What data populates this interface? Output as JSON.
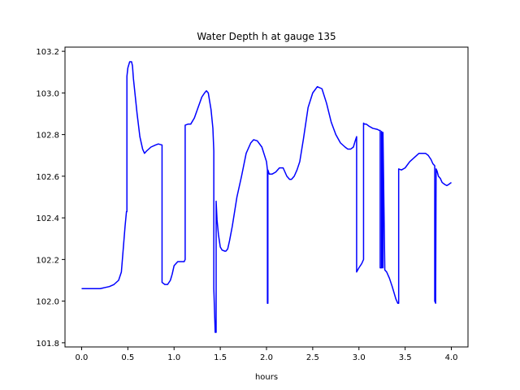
{
  "chart_data": {
    "type": "line",
    "title": "Water Depth h at gauge 135",
    "xlabel": "hours",
    "ylabel": "",
    "xlim": [
      -0.18,
      4.18
    ],
    "ylim": [
      101.78,
      103.22
    ],
    "xticks": [
      0.0,
      0.5,
      1.0,
      1.5,
      2.0,
      2.5,
      3.0,
      3.5,
      4.0
    ],
    "xtick_labels": [
      "0.0",
      "0.5",
      "1.0",
      "1.5",
      "2.0",
      "2.5",
      "3.0",
      "3.5",
      "4.0"
    ],
    "yticks": [
      101.8,
      102.0,
      102.2,
      102.4,
      102.6,
      102.8,
      103.0,
      103.2
    ],
    "ytick_labels": [
      "101.8",
      "102.0",
      "102.2",
      "102.4",
      "102.6",
      "102.8",
      "103.0",
      "103.2"
    ],
    "grid": false,
    "series": [
      {
        "color": "#0000ff",
        "x": [
          0.0,
          0.1,
          0.2,
          0.3,
          0.35,
          0.4,
          0.43,
          0.45,
          0.47,
          0.485,
          0.49,
          0.49,
          0.5,
          0.52,
          0.54,
          0.55,
          0.56,
          0.6,
          0.63,
          0.66,
          0.68,
          0.7,
          0.75,
          0.8,
          0.83,
          0.87,
          0.87,
          0.9,
          0.93,
          0.96,
          0.98,
          1.0,
          1.04,
          1.08,
          1.11,
          1.12,
          1.12,
          1.15,
          1.18,
          1.22,
          1.26,
          1.3,
          1.33,
          1.35,
          1.37,
          1.4,
          1.42,
          1.43,
          1.43,
          1.445,
          1.455,
          1.455,
          1.465,
          1.48,
          1.5,
          1.52,
          1.55,
          1.56,
          1.58,
          1.6,
          1.63,
          1.68,
          1.73,
          1.78,
          1.83,
          1.86,
          1.9,
          1.95,
          2.0,
          2.01,
          2.01,
          2.015,
          2.015,
          2.03,
          2.06,
          2.1,
          2.14,
          2.18,
          2.22,
          2.25,
          2.27,
          2.3,
          2.33,
          2.36,
          2.4,
          2.45,
          2.5,
          2.55,
          2.6,
          2.65,
          2.7,
          2.75,
          2.8,
          2.85,
          2.88,
          2.91,
          2.94,
          2.96,
          2.975,
          2.975,
          3.0,
          3.03,
          3.05,
          3.05,
          3.06,
          3.08,
          3.11,
          3.15,
          3.2,
          3.22,
          3.23,
          3.23,
          3.245,
          3.245,
          3.25,
          3.25,
          3.26,
          3.26,
          3.28,
          3.3,
          3.33,
          3.36,
          3.4,
          3.42,
          3.43,
          3.43,
          3.46,
          3.5,
          3.55,
          3.6,
          3.65,
          3.7,
          3.72,
          3.75,
          3.78,
          3.8,
          3.82,
          3.82,
          3.83,
          3.83,
          3.835,
          3.845,
          3.86,
          3.88,
          3.9,
          3.93,
          3.95,
          3.97,
          4.0
        ],
        "y": [
          102.06,
          102.06,
          102.06,
          102.07,
          102.08,
          102.1,
          102.14,
          102.25,
          102.36,
          102.43,
          102.43,
          103.08,
          103.12,
          103.15,
          103.15,
          103.13,
          103.07,
          102.9,
          102.79,
          102.73,
          102.71,
          102.72,
          102.74,
          102.75,
          102.755,
          102.75,
          102.09,
          102.08,
          102.08,
          102.1,
          102.13,
          102.17,
          102.19,
          102.19,
          102.19,
          102.2,
          102.845,
          102.85,
          102.85,
          102.88,
          102.93,
          102.98,
          103.0,
          103.01,
          103.0,
          102.92,
          102.83,
          102.72,
          102.06,
          101.85,
          101.85,
          102.48,
          102.39,
          102.32,
          102.26,
          102.245,
          102.24,
          102.24,
          102.25,
          102.29,
          102.36,
          102.5,
          102.6,
          102.71,
          102.76,
          102.775,
          102.77,
          102.74,
          102.67,
          102.63,
          101.99,
          101.99,
          102.63,
          102.61,
          102.61,
          102.62,
          102.64,
          102.64,
          102.6,
          102.585,
          102.585,
          102.6,
          102.63,
          102.67,
          102.78,
          102.93,
          103.0,
          103.03,
          103.02,
          102.95,
          102.86,
          102.8,
          102.76,
          102.74,
          102.73,
          102.73,
          102.74,
          102.77,
          102.79,
          102.14,
          102.16,
          102.18,
          102.2,
          102.855,
          102.85,
          102.85,
          102.84,
          102.83,
          102.825,
          102.82,
          102.82,
          102.16,
          102.16,
          102.815,
          102.16,
          102.81,
          102.16,
          102.81,
          102.15,
          102.14,
          102.11,
          102.07,
          102.01,
          101.99,
          101.99,
          102.635,
          102.63,
          102.64,
          102.67,
          102.69,
          102.71,
          102.71,
          102.71,
          102.7,
          102.68,
          102.66,
          102.65,
          102.0,
          101.99,
          102.0,
          102.635,
          102.625,
          102.6,
          102.59,
          102.57,
          102.56,
          102.555,
          102.56,
          102.57
        ]
      }
    ]
  }
}
